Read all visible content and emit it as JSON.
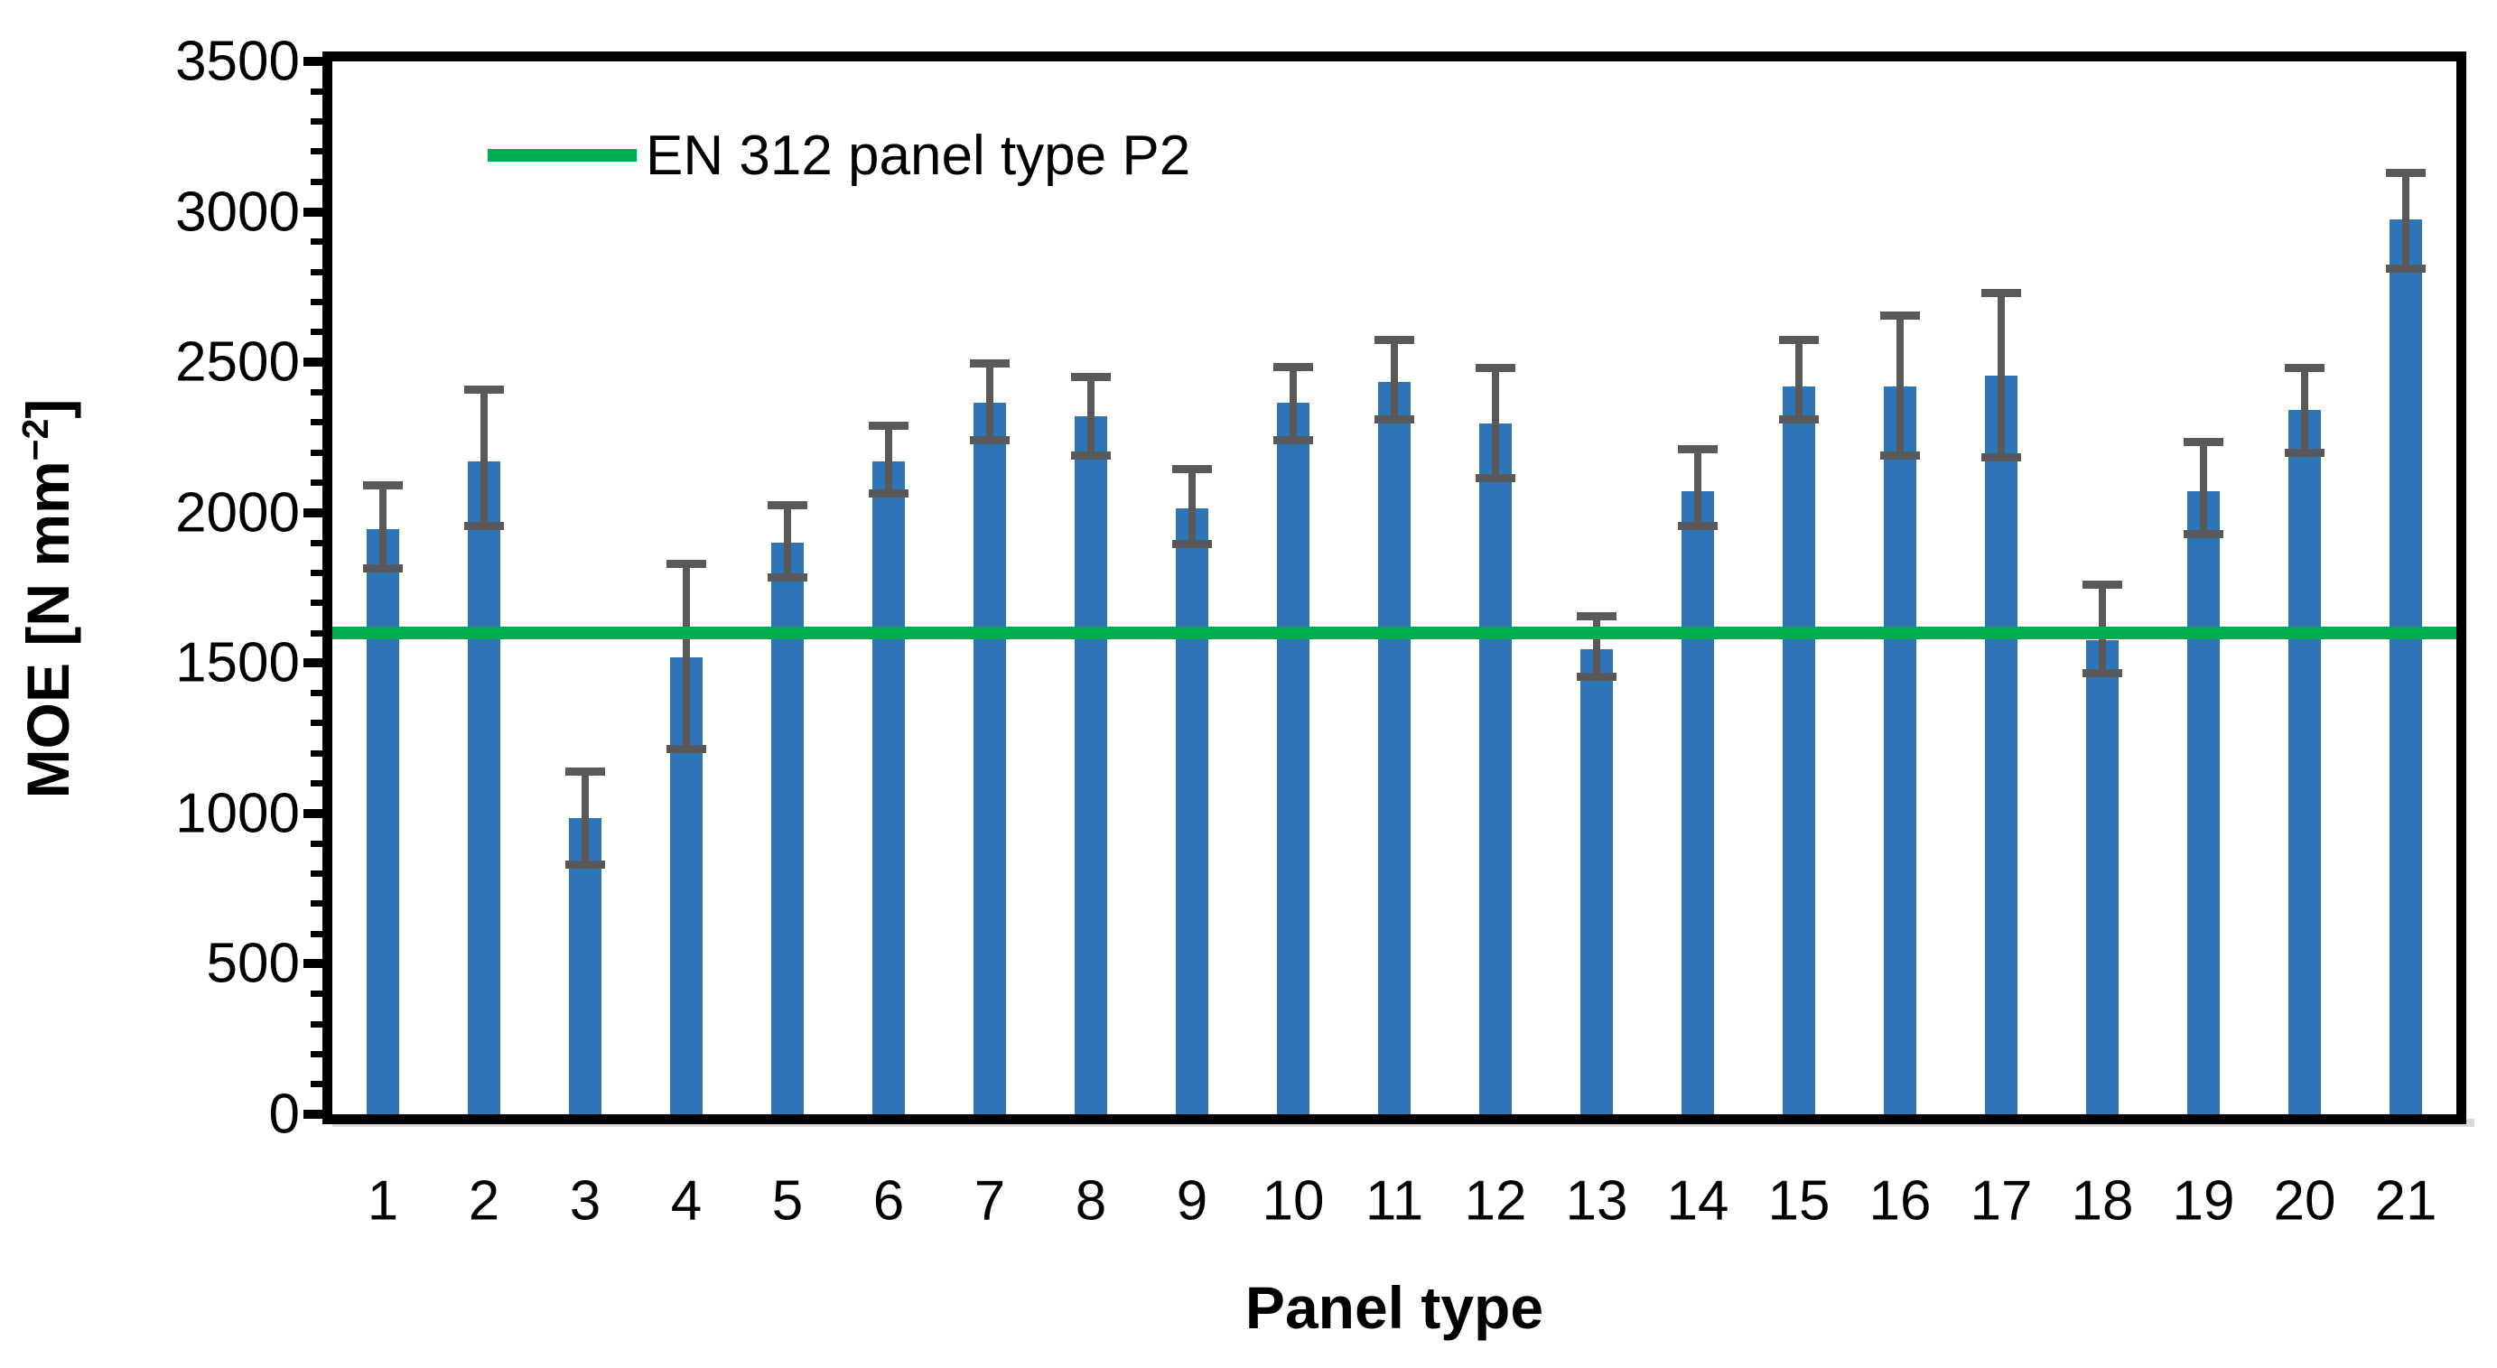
{
  "figure": {
    "background_color": "#FFFFFF",
    "colors": {
      "bar_fill": "#2E75B5",
      "error_bar": "#595959",
      "reference_line": "#00AD50",
      "axis": "#000000",
      "baseline_shadow": "#D9D9D9",
      "text": "#000000"
    }
  },
  "axis_titles": {
    "x": "Panel type",
    "y_prefix": "MOE [N mm",
    "y_superscript": "−2",
    "y_suffix": "]"
  },
  "legend": {
    "position": "top-left-inside",
    "entries": [
      {
        "label": "EN 312 panel type P2",
        "color": "#00AD50",
        "marker": "line"
      }
    ]
  },
  "chart_data": {
    "type": "bar",
    "title": "",
    "xlabel": "Panel type",
    "ylabel": "MOE [N mm−2]",
    "categories": [
      "1",
      "2",
      "3",
      "4",
      "5",
      "6",
      "7",
      "8",
      "9",
      "10",
      "11",
      "12",
      "13",
      "14",
      "15",
      "16",
      "17",
      "18",
      "19",
      "20",
      "21"
    ],
    "series": [
      {
        "name": "MOE",
        "values": [
          1945,
          2170,
          985,
          1520,
          1900,
          2170,
          2365,
          2320,
          2015,
          2365,
          2435,
          2295,
          1545,
          2070,
          2420,
          2420,
          2455,
          1575,
          2070,
          2340,
          2975
        ],
        "error_upper": [
          2090,
          2410,
          1140,
          1830,
          2025,
          2290,
          2495,
          2450,
          2145,
          2485,
          2575,
          2480,
          1655,
          2210,
          2575,
          2655,
          2730,
          1760,
          2235,
          2480,
          3130
        ],
        "error_lower": [
          1815,
          1955,
          830,
          1215,
          1785,
          2065,
          2240,
          2190,
          1895,
          2240,
          2310,
          2115,
          1455,
          1955,
          2310,
          2190,
          2185,
          1465,
          1930,
          2200,
          2810
        ]
      }
    ],
    "reference_line": {
      "label": "EN 312 panel type P2",
      "value": 1600,
      "color": "#00AD50"
    },
    "ylim": [
      0,
      3500
    ],
    "y_major_step": 500,
    "y_minor_step": 100,
    "y_tick_labels": [
      "0",
      "500",
      "1000",
      "1500",
      "2000",
      "2500",
      "3000",
      "3500"
    ],
    "grid": false,
    "legend_position": "top-left-inside"
  }
}
